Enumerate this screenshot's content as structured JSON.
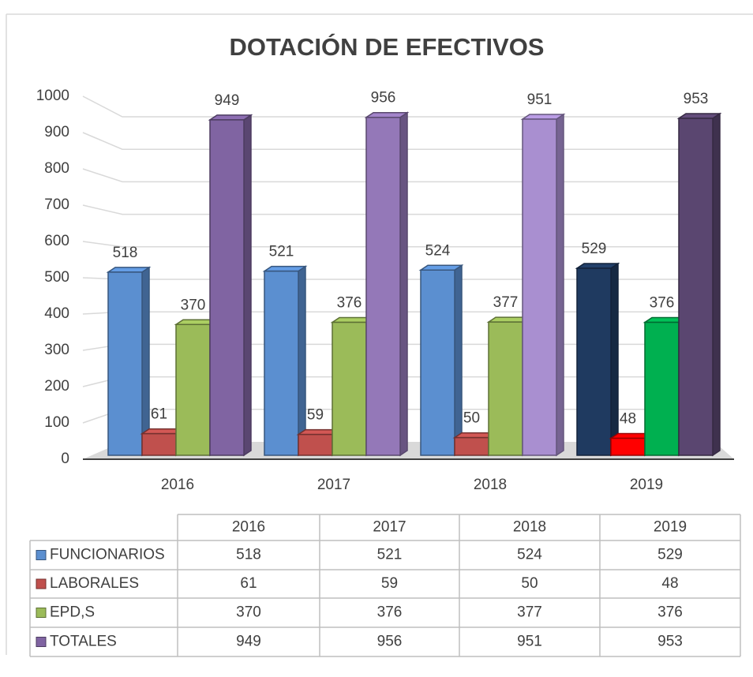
{
  "chart_data": {
    "type": "bar3d",
    "title": "DOTACIÓN DE EFECTIVOS",
    "categories": [
      "2016",
      "2017",
      "2018",
      "2019"
    ],
    "series": [
      {
        "name": "FUNCIONARIOS",
        "color": "#5b8fd0",
        "colors": [
          "#5b8fd0",
          "#5b8fd0",
          "#5b8fd0",
          "#1f3a60"
        ],
        "values": [
          518,
          521,
          524,
          529
        ]
      },
      {
        "name": "LABORALES",
        "color": "#c0504d",
        "colors": [
          "#c0504d",
          "#c0504d",
          "#c0504d",
          "#ff0000"
        ],
        "values": [
          61,
          59,
          50,
          48
        ]
      },
      {
        "name": "EPD,S",
        "color": "#9bbb59",
        "colors": [
          "#9bbb59",
          "#9bbb59",
          "#9bbb59",
          "#00b050"
        ],
        "values": [
          370,
          376,
          377,
          376
        ]
      },
      {
        "name": "TOTALES",
        "color": "#8064a2",
        "colors": [
          "#8064a2",
          "#9478b8",
          "#a98fd0",
          "#5a4670"
        ],
        "values": [
          949,
          956,
          951,
          953
        ]
      }
    ],
    "ylim": [
      0,
      1000
    ],
    "yticks": [
      0,
      100,
      200,
      300,
      400,
      500,
      600,
      700,
      800,
      900,
      1000
    ],
    "grid": true,
    "data_table": true
  }
}
